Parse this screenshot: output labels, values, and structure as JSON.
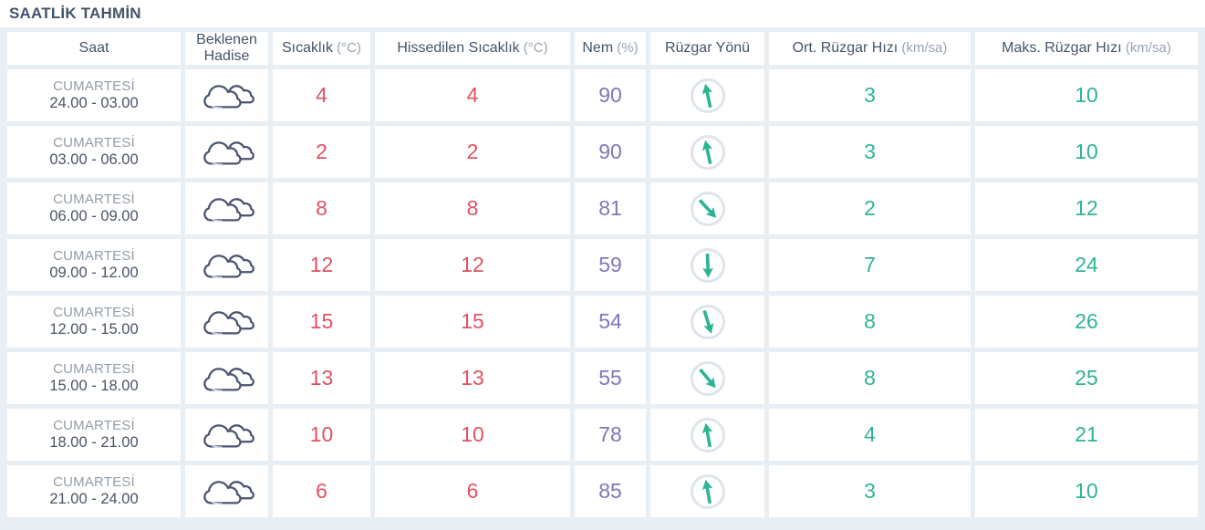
{
  "title": "SAATLİK TAHMİN",
  "colors": {
    "header_text": "#44546a",
    "unit_text": "#9aa4b2",
    "day_text": "#929da9",
    "time_text": "#4a5465",
    "temperature_accent": "#e25162",
    "humidity_accent": "#8076ba",
    "wind_accent": "#2eb397",
    "circle_border": "#dde4eb",
    "cloud_outline": "#4a5470",
    "panel_background": "#e8eff4"
  },
  "table": {
    "columns": [
      {
        "key": "saat",
        "label": "Saat",
        "unit": ""
      },
      {
        "key": "hadise",
        "label": "Beklenen Hadise",
        "unit": ""
      },
      {
        "key": "sic",
        "label": "Sıcaklık",
        "unit": "(°C)"
      },
      {
        "key": "his",
        "label": "Hissedilen Sıcaklık",
        "unit": "(°C)"
      },
      {
        "key": "nem",
        "label": "Nem",
        "unit": "(%)"
      },
      {
        "key": "ryon",
        "label": "Rüzgar Yönü",
        "unit": ""
      },
      {
        "key": "ort",
        "label": "Ort. Rüzgar Hızı",
        "unit": "(km/sa)"
      },
      {
        "key": "maks",
        "label": "Maks. Rüzgar Hızı",
        "unit": "(km/sa)"
      }
    ],
    "rows": [
      {
        "day": "CUMARTESİ",
        "time": "24.00 - 03.00",
        "condition_icon": "mostly-cloudy-icon",
        "temperature": "4",
        "feels_like": "4",
        "humidity": "90",
        "wind_dir_deg": -12,
        "avg_wind": "3",
        "max_wind": "10"
      },
      {
        "day": "CUMARTESİ",
        "time": "03.00 - 06.00",
        "condition_icon": "mostly-cloudy-icon",
        "temperature": "2",
        "feels_like": "2",
        "humidity": "90",
        "wind_dir_deg": -12,
        "avg_wind": "3",
        "max_wind": "10"
      },
      {
        "day": "CUMARTESİ",
        "time": "06.00 - 09.00",
        "condition_icon": "mostly-cloudy-icon",
        "temperature": "8",
        "feels_like": "8",
        "humidity": "81",
        "wind_dir_deg": 137,
        "avg_wind": "2",
        "max_wind": "12"
      },
      {
        "day": "CUMARTESİ",
        "time": "09.00 - 12.00",
        "condition_icon": "mostly-cloudy-icon",
        "temperature": "12",
        "feels_like": "12",
        "humidity": "59",
        "wind_dir_deg": 178,
        "avg_wind": "7",
        "max_wind": "24"
      },
      {
        "day": "CUMARTESİ",
        "time": "12.00 - 15.00",
        "condition_icon": "mostly-cloudy-icon",
        "temperature": "15",
        "feels_like": "15",
        "humidity": "54",
        "wind_dir_deg": 163,
        "avg_wind": "8",
        "max_wind": "26"
      },
      {
        "day": "CUMARTESİ",
        "time": "15.00 - 18.00",
        "condition_icon": "mostly-cloudy-icon",
        "temperature": "13",
        "feels_like": "13",
        "humidity": "55",
        "wind_dir_deg": 140,
        "avg_wind": "8",
        "max_wind": "25"
      },
      {
        "day": "CUMARTESİ",
        "time": "18.00 - 21.00",
        "condition_icon": "mostly-cloudy-icon",
        "temperature": "10",
        "feels_like": "10",
        "humidity": "78",
        "wind_dir_deg": -10,
        "avg_wind": "4",
        "max_wind": "21"
      },
      {
        "day": "CUMARTESİ",
        "time": "21.00 - 24.00",
        "condition_icon": "mostly-cloudy-icon",
        "temperature": "6",
        "feels_like": "6",
        "humidity": "85",
        "wind_dir_deg": -10,
        "avg_wind": "3",
        "max_wind": "10"
      }
    ]
  }
}
